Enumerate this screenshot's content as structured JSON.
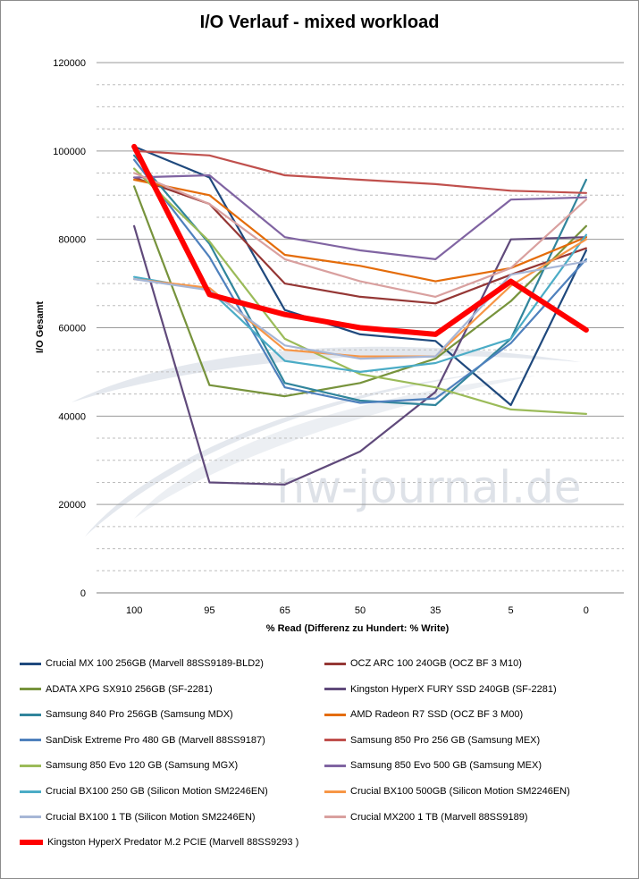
{
  "chart_data": {
    "type": "line",
    "title": "I/O Verlauf - mixed workload",
    "xlabel": "% Read (Differenz zu Hundert: % Write)",
    "ylabel": "I/O Gesamt",
    "categories": [
      "100",
      "95",
      "65",
      "50",
      "35",
      "5",
      "0"
    ],
    "ylim": [
      0,
      120000
    ],
    "yticks": [
      0,
      20000,
      40000,
      60000,
      80000,
      100000,
      120000
    ],
    "grid": "horizontal dashed",
    "legend_position": "bottom",
    "series": [
      {
        "name": "Crucial MX 100 256GB (Marvell 88SS9189-BLD2)",
        "color": "#1f497d",
        "values": [
          101000,
          94000,
          64000,
          58500,
          57000,
          42500,
          77500
        ]
      },
      {
        "name": "OCZ ARC 100 240GB (OCZ BF 3 M10)",
        "color": "#953735",
        "values": [
          94000,
          88000,
          70000,
          67000,
          65500,
          72000,
          78000
        ]
      },
      {
        "name": "ADATA XPG SX910 256GB (SF-2281)",
        "color": "#77933c",
        "values": [
          92000,
          47000,
          44500,
          47500,
          53000,
          66000,
          83000
        ]
      },
      {
        "name": "Kingston HyperX FURY SSD 240GB (SF-2281)",
        "color": "#604a7b",
        "values": [
          83000,
          25000,
          24500,
          32000,
          45500,
          80000,
          80500
        ]
      },
      {
        "name": "Samsung 840 Pro 256GB (Samsung MDX)",
        "color": "#31859c",
        "values": [
          99000,
          79000,
          47500,
          43500,
          42500,
          57500,
          93500
        ]
      },
      {
        "name": "AMD Radeon R7 SSD (OCZ BF 3 M00)",
        "color": "#e46c0a",
        "values": [
          93500,
          90000,
          76500,
          74000,
          70500,
          73500,
          80500
        ]
      },
      {
        "name": "SanDisk Extreme Pro 480 GB (Marvell 88SS9187)",
        "color": "#4f81bd",
        "values": [
          98000,
          76000,
          46500,
          43000,
          44000,
          56500,
          75500
        ]
      },
      {
        "name": "Samsung 850 Pro 256 GB (Samsung MEX)",
        "color": "#c0504d",
        "values": [
          100000,
          99000,
          94500,
          93500,
          92500,
          91000,
          90500
        ]
      },
      {
        "name": "Samsung 850 Evo 120 GB (Samsung MGX)",
        "color": "#9bbb59",
        "values": [
          96000,
          79500,
          57500,
          49500,
          46500,
          41500,
          40500
        ]
      },
      {
        "name": "Samsung 850 Evo 500 GB (Samsung MEX)",
        "color": "#8064a2",
        "values": [
          94000,
          94500,
          80500,
          77500,
          75500,
          89000,
          89500
        ]
      },
      {
        "name": "Crucial BX100 250 GB (Silicon Motion SM2246EN)",
        "color": "#4bacc6",
        "values": [
          71500,
          68500,
          52500,
          50000,
          52000,
          57500,
          81000
        ]
      },
      {
        "name": "Crucial BX100 500GB (Silicon Motion SM2246EN)",
        "color": "#f79646",
        "values": [
          71000,
          69000,
          55000,
          53500,
          53500,
          69500,
          80000
        ]
      },
      {
        "name": "Crucial BX100 1 TB (Silicon Motion SM2246EN)",
        "color": "#a6b6d6",
        "values": [
          71000,
          68500,
          56000,
          53000,
          53500,
          72000,
          75000
        ]
      },
      {
        "name": "Crucial MX200 1 TB (Marvell 88SS9189)",
        "color": "#d9a09f",
        "values": [
          95000,
          88000,
          75500,
          70500,
          67000,
          73500,
          89000
        ]
      },
      {
        "name": "Kingston HyperX Predator M.2 PCIE (Marvell 88SS9293 )",
        "color": "#ff0000",
        "bold": true,
        "values": [
          101000,
          67500,
          63000,
          60000,
          58500,
          70500,
          59500
        ]
      }
    ]
  },
  "watermark": "hw-journal.de"
}
